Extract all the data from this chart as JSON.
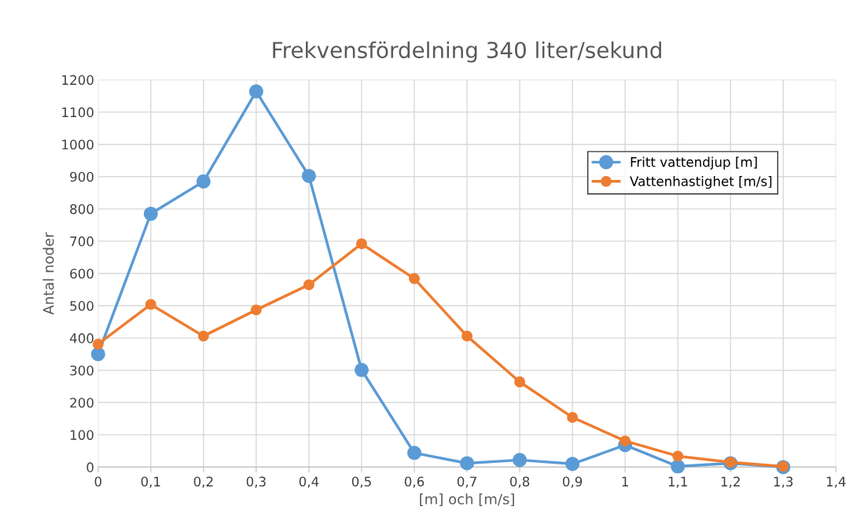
{
  "chart_data": {
    "type": "line",
    "title": "Frekvensfördelning 340 liter/sekund",
    "xlabel": "[m] och [m/s]",
    "ylabel": "Antal noder",
    "x": [
      0,
      0.1,
      0.2,
      0.3,
      0.4,
      0.5,
      0.6,
      0.7,
      0.8,
      0.9,
      1,
      1.1,
      1.2,
      1.3
    ],
    "series": [
      {
        "name": "Fritt vattendjup [m]",
        "color": "#5b9bd5",
        "values": [
          350,
          785,
          885,
          1164,
          902,
          301,
          44,
          12,
          22,
          10,
          68,
          2,
          12,
          0
        ]
      },
      {
        "name": "Vattenhastighet [m/s]",
        "color": "#ed7d31",
        "values": [
          381,
          504,
          406,
          487,
          565,
          692,
          584,
          406,
          264,
          154,
          81,
          34,
          15,
          2
        ]
      }
    ],
    "xlim": [
      0,
      1.4
    ],
    "xticks": [
      0,
      {
        "value": 0.1,
        "label": "0,1"
      },
      {
        "value": 0.2,
        "label": "0,2"
      },
      {
        "value": 0.3,
        "label": "0,3"
      },
      {
        "value": 0.4,
        "label": "0,4"
      },
      {
        "value": 0.5,
        "label": "0,5"
      },
      {
        "value": 0.6,
        "label": "0,6"
      },
      {
        "value": 0.7,
        "label": "0,7"
      },
      {
        "value": 0.8,
        "label": "0,8"
      },
      {
        "value": 0.9,
        "label": "0,9"
      },
      1,
      {
        "value": 1.1,
        "label": "1,1"
      },
      {
        "value": 1.2,
        "label": "1,2"
      },
      {
        "value": 1.3,
        "label": "1,3"
      },
      {
        "value": 1.4,
        "label": "1,4"
      }
    ],
    "ylim": [
      0,
      1200
    ],
    "yticks": [
      0,
      100,
      200,
      300,
      400,
      500,
      600,
      700,
      800,
      900,
      1000,
      1100,
      1200
    ],
    "grid": true,
    "legend": "right",
    "marker": "circle",
    "line_style": "solid"
  }
}
